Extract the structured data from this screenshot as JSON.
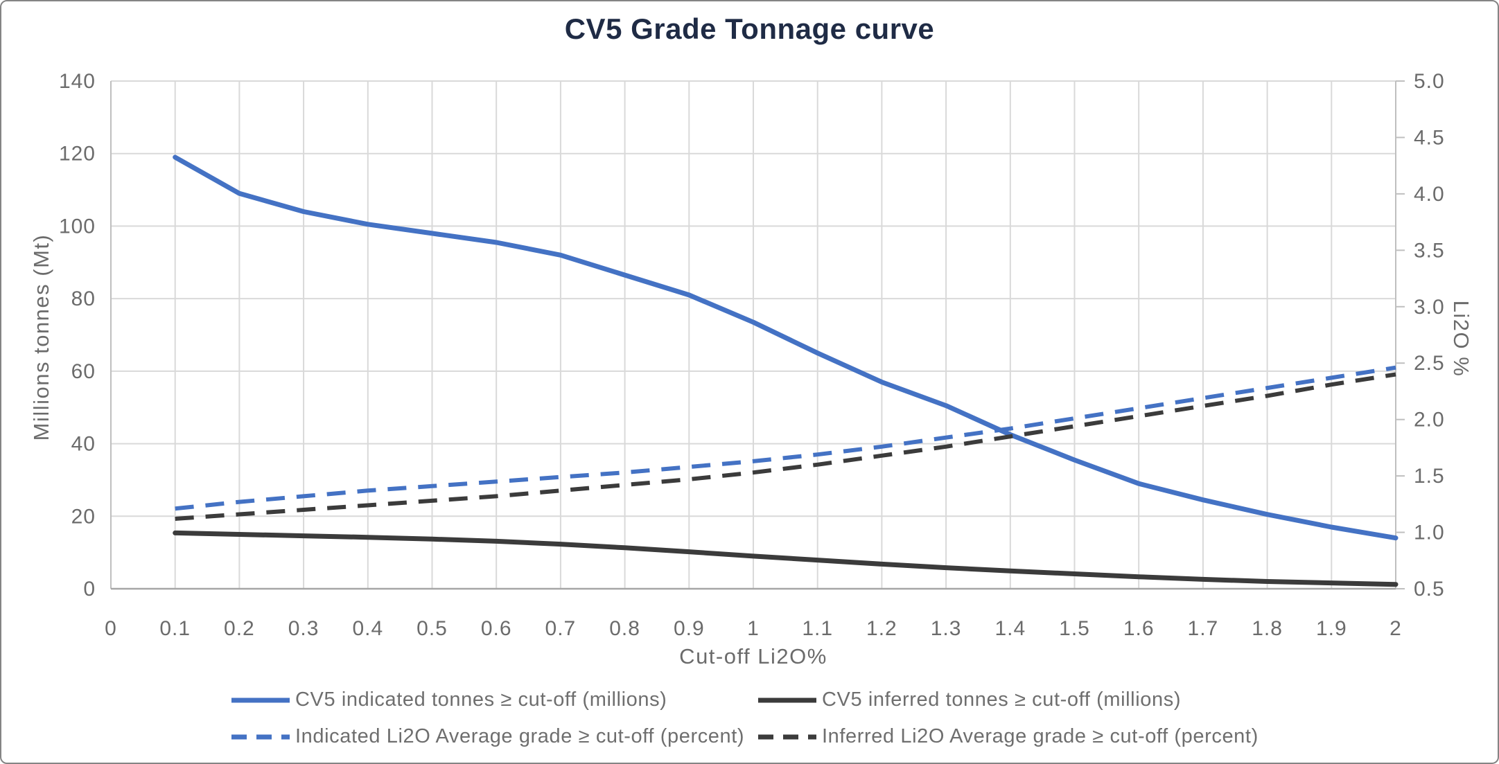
{
  "title": "CV5 Grade Tonnage curve",
  "chart_data": {
    "type": "line",
    "title": "CV5 Grade Tonnage curve",
    "xlabel": "Cut-off Li2O%",
    "ylabel_left": "Millions tonnes (Mt)",
    "ylabel_right": "Li2O %",
    "grid": true,
    "legend_position": "bottom",
    "xlim": [
      0,
      2
    ],
    "ylim_left": [
      0,
      140
    ],
    "ylim_right": [
      0.5,
      5.0
    ],
    "x_tick_labels": [
      "0",
      "0.1",
      "0.2",
      "0.3",
      "0.4",
      "0.5",
      "0.6",
      "0.7",
      "0.8",
      "0.9",
      "1",
      "1.1",
      "1.2",
      "1.3",
      "1.4",
      "1.5",
      "1.6",
      "1.7",
      "1.8",
      "1.9",
      "2"
    ],
    "y_tick_labels_left": [
      "0",
      "20",
      "40",
      "60",
      "80",
      "100",
      "120",
      "140"
    ],
    "y_tick_labels_right": [
      "0.5",
      "1.0",
      "1.5",
      "2.0",
      "2.5",
      "3.0",
      "3.5",
      "4.0",
      "4.5",
      "5.0"
    ],
    "x": [
      0.1,
      0.2,
      0.3,
      0.4,
      0.5,
      0.6,
      0.7,
      0.8,
      0.9,
      1.0,
      1.1,
      1.2,
      1.3,
      1.4,
      1.5,
      1.6,
      1.7,
      1.8,
      1.9,
      2.0
    ],
    "series": [
      {
        "name": "CV5 indicated tonnes ≥ cut-off (millions)",
        "axis": "left",
        "style": "solid",
        "color": "#4472C4",
        "values": [
          119,
          109,
          104,
          100.5,
          98,
          95.5,
          92,
          86.5,
          81,
          73.5,
          65,
          57,
          50.5,
          42.5,
          35.5,
          29,
          24.5,
          20.5,
          17,
          14
        ]
      },
      {
        "name": "CV5 inferred tonnes ≥ cut-off (millions)",
        "axis": "left",
        "style": "solid",
        "color": "#3B3B3B",
        "values": [
          15.4,
          15.0,
          14.6,
          14.2,
          13.7,
          13.1,
          12.3,
          11.3,
          10.2,
          9.0,
          7.9,
          6.8,
          5.8,
          4.9,
          4.1,
          3.3,
          2.6,
          2.0,
          1.6,
          1.2
        ]
      },
      {
        "name": "Indicated Li2O Average grade ≥ cut-off (percent)",
        "axis": "right",
        "style": "dashed",
        "color": "#4472C4",
        "values": [
          1.21,
          1.27,
          1.32,
          1.37,
          1.41,
          1.45,
          1.49,
          1.53,
          1.58,
          1.63,
          1.69,
          1.76,
          1.84,
          1.92,
          2.01,
          2.1,
          2.19,
          2.28,
          2.37,
          2.46
        ]
      },
      {
        "name": "Inferred Li2O Average grade ≥ cut-off (percent)",
        "axis": "right",
        "style": "dashed",
        "color": "#3B3B3B",
        "values": [
          1.12,
          1.16,
          1.2,
          1.24,
          1.28,
          1.32,
          1.37,
          1.42,
          1.47,
          1.53,
          1.6,
          1.68,
          1.76,
          1.85,
          1.94,
          2.03,
          2.12,
          2.21,
          2.31,
          2.4
        ]
      }
    ],
    "colors": {
      "indicated_blue": "#4472C4",
      "inferred_dark": "#3B3B3B",
      "gridline": "#D9D9D9",
      "axis_line": "#BFBFBF",
      "bottom_axis_line": "#A6A6A6",
      "tick_text": "#6B6B6B",
      "title_text": "#1F2B45",
      "legend_text": "#6E6E6E"
    }
  }
}
